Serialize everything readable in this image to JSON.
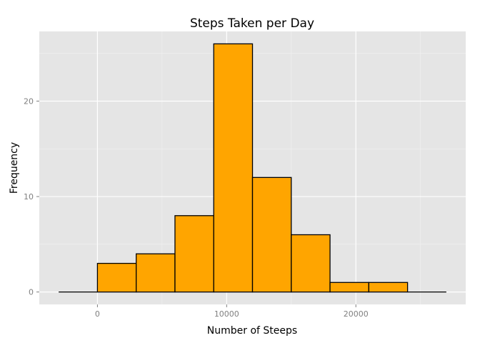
{
  "chart_data": {
    "type": "bar",
    "title": "Steps Taken per Day",
    "xlabel": "Number of Steeps",
    "ylabel": "Frequency",
    "bin_width": 3000,
    "bins": [
      {
        "x_start": -3000,
        "x_end": 0,
        "count": 0
      },
      {
        "x_start": 0,
        "x_end": 3000,
        "count": 3
      },
      {
        "x_start": 3000,
        "x_end": 6000,
        "count": 4
      },
      {
        "x_start": 6000,
        "x_end": 9000,
        "count": 8
      },
      {
        "x_start": 9000,
        "x_end": 12000,
        "count": 26
      },
      {
        "x_start": 12000,
        "x_end": 15000,
        "count": 12
      },
      {
        "x_start": 15000,
        "x_end": 18000,
        "count": 6
      },
      {
        "x_start": 18000,
        "x_end": 21000,
        "count": 1
      },
      {
        "x_start": 21000,
        "x_end": 24000,
        "count": 1
      },
      {
        "x_start": 24000,
        "x_end": 27000,
        "count": 0
      }
    ],
    "xlim": [
      -4500,
      28500
    ],
    "ylim": [
      -1.3,
      27.3
    ],
    "x_ticks": [
      0,
      10000,
      20000
    ],
    "x_tick_labels": [
      "0",
      "10000",
      "20000"
    ],
    "y_ticks": [
      0,
      10,
      20
    ],
    "y_tick_labels": [
      "0",
      "10",
      "20"
    ],
    "grid": true,
    "colors": {
      "bar_fill": "#FFA500",
      "bar_stroke": "#000000",
      "panel_background": "#E5E5E5",
      "grid_major": "#FFFFFF",
      "grid_minor": "#F2F2F2"
    }
  }
}
